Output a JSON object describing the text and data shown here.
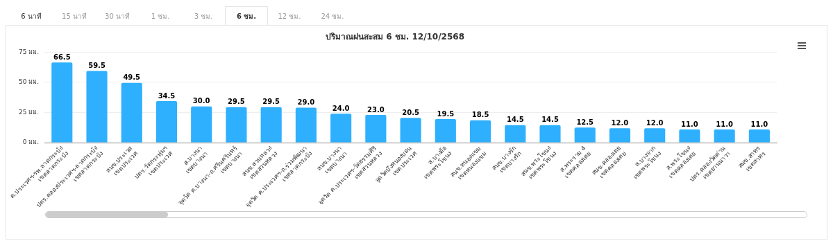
{
  "chart_data": {
    "type": "bar",
    "title": "ปริมาณฝนสะสม 6 ชม. 12/10/2568",
    "annotations": [
      "6 นาที",
      "15 นาที",
      "30 นาที",
      "1 ชม.",
      "3 ชม.",
      "6 ชม.",
      "12 ชม.",
      "24 ชม."
    ],
    "categories": [
      "ค.ประเวศฯ-รพ.ลาดกระบัง\nเขตลาดกระบัง",
      "ปตร.คลองประเวศฯ-ลาดกระบัง\nเขตลาดกระบัง",
      "สนข.ประเวศ\nเขตประเวศ",
      "ปตร.วัดกระทุ่มฯ\nเขตประเวศ",
      "ส.บางนา\nเขตบางนา",
      "จุดวัด ต.บางนา-ถ.ศรีนครินทร์\nเขตบางนา",
      "สนข.สวนหลวง\nเขตสวนหลวง",
      "จุดวัด ค.ประเวศฯ-ถ.ร่วมพัฒนา\nเขตลาดกระบัง",
      "สนข.บางนา\nเขตบางนา",
      "จุดวัด ค.ประเวศฯ-วัดธรรมศิริ\nเขตสวนหลวง",
      "จุดวัดบึงหนองบอน\nเขตประเวศ",
      "ส.บางอ้อ\nเขตพระโขนง",
      "สนข.หนองแขม\nเขตหนองแขม",
      "สนข.บางรัก\nเขตบางรัก",
      "สนข.พระโขนง\nเขตพระโขนง",
      "ส.พระราม 4\nเขตคลองเตย",
      "สนข.คลองเตย\nเขตคลองเตย",
      "ส.บางจาก\nเขตพระโขนง",
      "ส.พระโขนง\nเขตคลองเตย",
      "ปตร.คลองวัดด่าน\nเขตยานนาวา",
      "สนข.สาทร\nเขตสาทร"
    ],
    "values": [
      66.5,
      59.5,
      49.5,
      34.5,
      30.0,
      29.5,
      29.5,
      29.0,
      24.0,
      23.0,
      20.5,
      19.5,
      18.5,
      14.5,
      14.5,
      12.5,
      12.0,
      12.0,
      11.0,
      11.0,
      11.0
    ],
    "value_labels": [
      "66.5",
      "59.5",
      "49.5",
      "34.5",
      "30.0",
      "29.5",
      "29.5",
      "29.0",
      "24.0",
      "23.0",
      "20.5",
      "19.5",
      "18.5",
      "14.5",
      "14.5",
      "12.5",
      "12.0",
      "12.0",
      "11.0",
      "11.0",
      "11.0"
    ],
    "color": "#2eb0ff",
    "ylim": [
      0,
      75
    ],
    "yticks": [
      {
        "value": 0,
        "label": "0 มม."
      },
      {
        "value": 25,
        "label": "25 มม."
      },
      {
        "value": 50,
        "label": "50 มม."
      },
      {
        "value": 75,
        "label": "75 มม."
      }
    ],
    "grid": "y",
    "legend": false
  }
}
